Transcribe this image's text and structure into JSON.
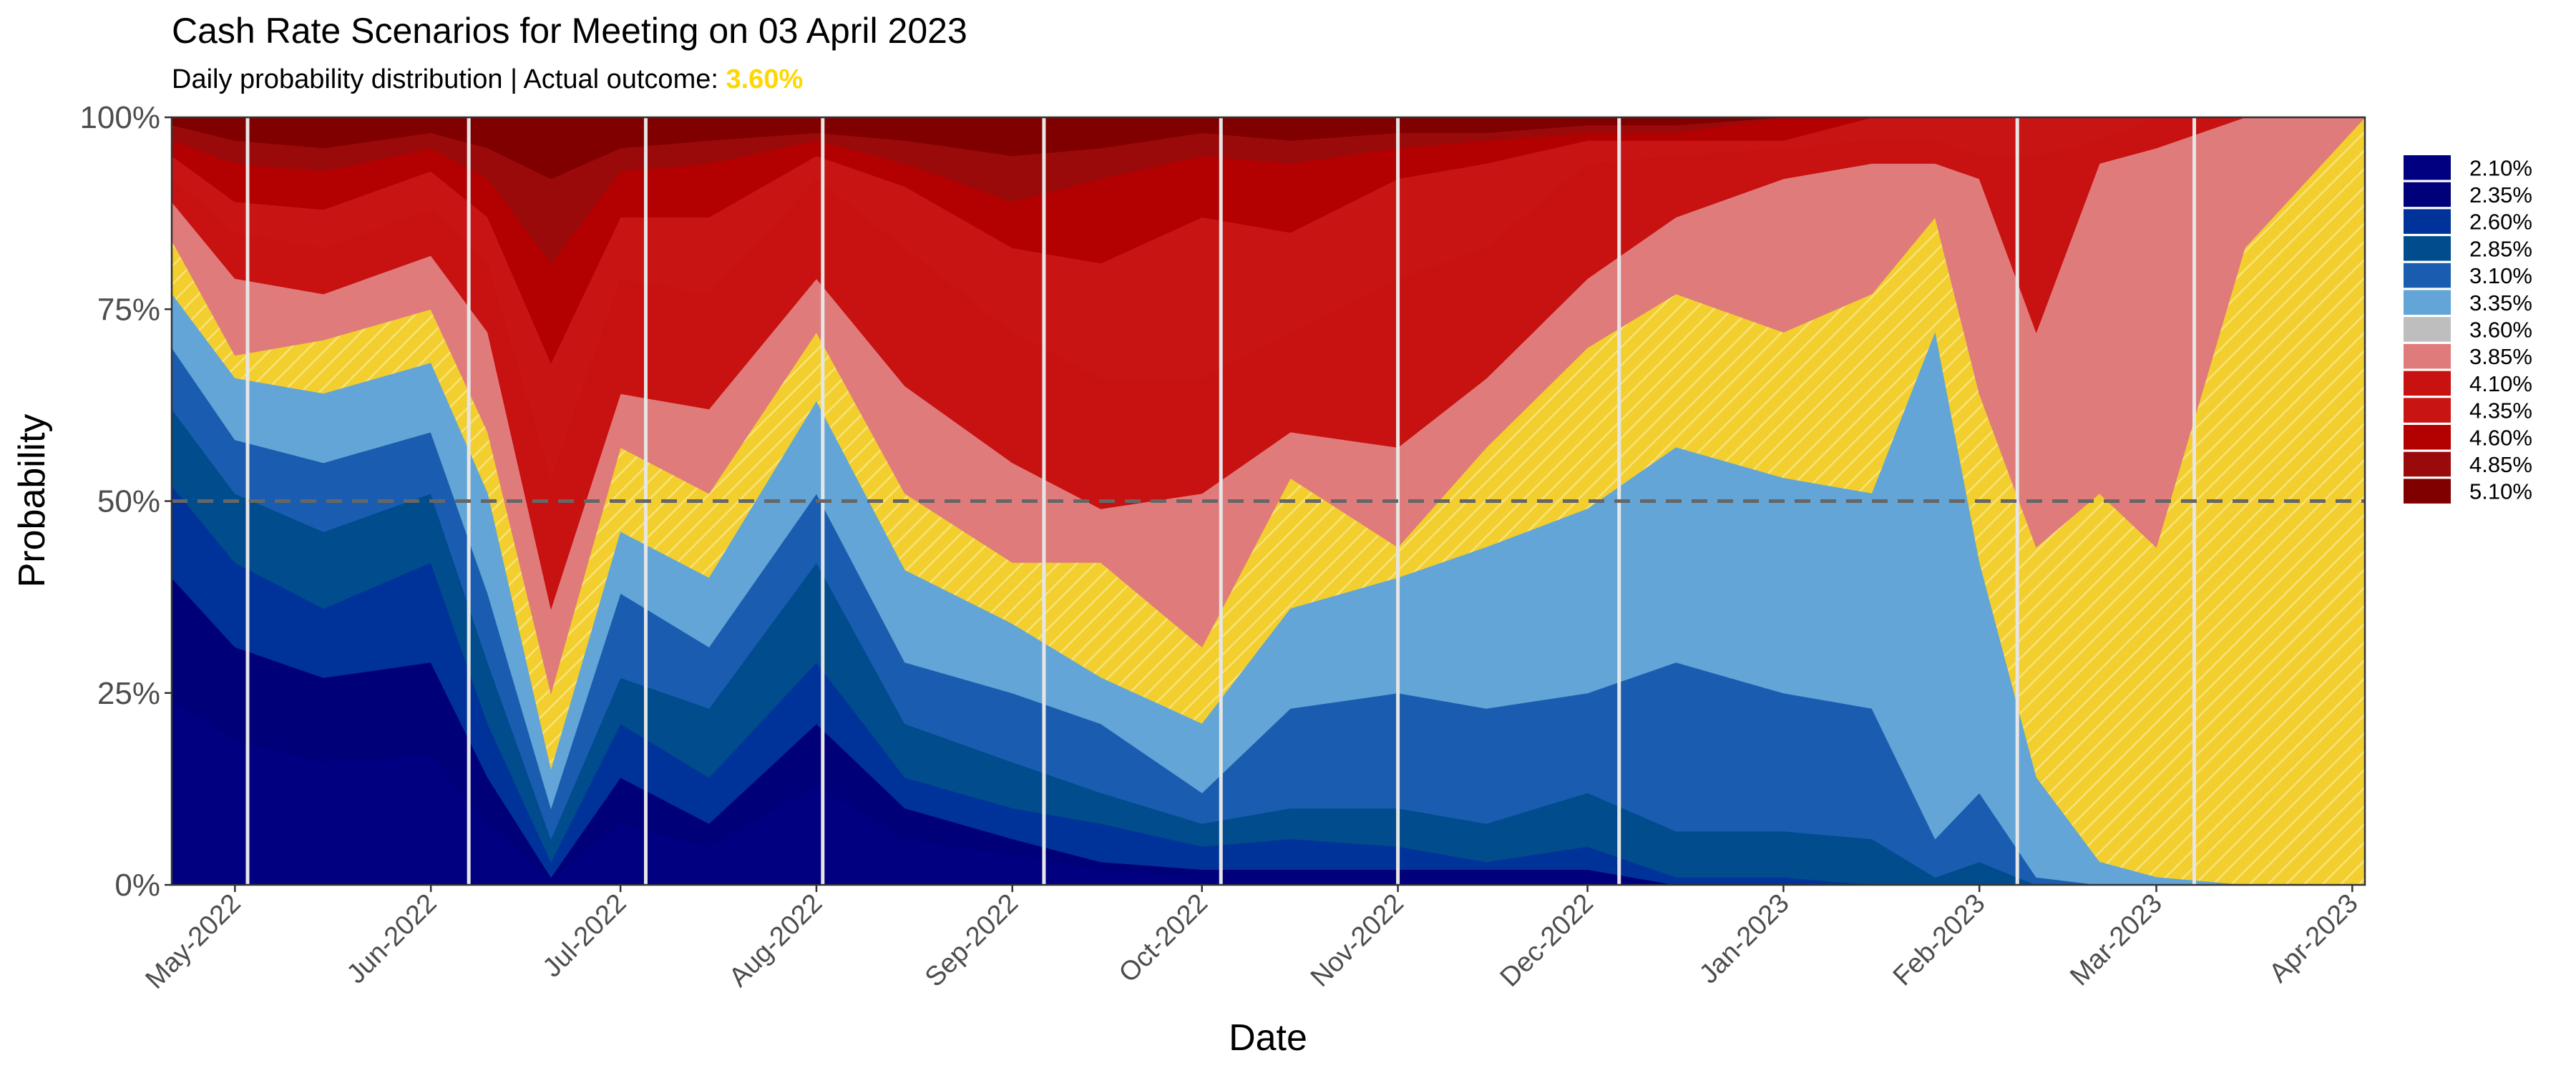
{
  "title": "Cash Rate Scenarios for Meeting on 03 April 2023",
  "subtitle_prefix": "Daily probability distribution | Actual outcome: ",
  "subtitle_highlight": "3.60%",
  "colors": {
    "highlight": "#FFD700",
    "hatch_fill": "#F2CF2E",
    "hatch_line": "#F8E27A",
    "fifty_line": "#666666",
    "meeting_line": "#E6E6E6"
  },
  "chart_data": {
    "type": "area",
    "stacked": true,
    "title": "Cash Rate Scenarios for Meeting on 03 April 2023",
    "xlabel": "Date",
    "ylabel": "Probability",
    "xlim": [
      "2022-04-21",
      "2023-04-03"
    ],
    "ylim": [
      0,
      100
    ],
    "y_ticks": [
      {
        "value": 0,
        "label": "0%"
      },
      {
        "value": 25,
        "label": "25%"
      },
      {
        "value": 50,
        "label": "50%"
      },
      {
        "value": 75,
        "label": "75%"
      },
      {
        "value": 100,
        "label": "100%"
      }
    ],
    "x_ticks": [
      {
        "date": "2022-05-01",
        "label": "May-2022"
      },
      {
        "date": "2022-06-01",
        "label": "Jun-2022"
      },
      {
        "date": "2022-07-01",
        "label": "Jul-2022"
      },
      {
        "date": "2022-08-01",
        "label": "Aug-2022"
      },
      {
        "date": "2022-09-01",
        "label": "Sep-2022"
      },
      {
        "date": "2022-10-01",
        "label": "Oct-2022"
      },
      {
        "date": "2022-11-01",
        "label": "Nov-2022"
      },
      {
        "date": "2022-12-01",
        "label": "Dec-2022"
      },
      {
        "date": "2023-01-01",
        "label": "Jan-2023"
      },
      {
        "date": "2023-02-01",
        "label": "Feb-2023"
      },
      {
        "date": "2023-03-01",
        "label": "Mar-2023"
      },
      {
        "date": "2023-04-01",
        "label": "Apr-2023"
      }
    ],
    "reference_line": {
      "y": 50,
      "style": "dashed"
    },
    "meeting_dates": [
      "2022-05-03",
      "2022-06-07",
      "2022-07-05",
      "2022-08-02",
      "2022-09-06",
      "2022-10-04",
      "2022-11-01",
      "2022-12-06",
      "2023-02-07",
      "2023-03-07"
    ],
    "actual_outcome": "3.60%",
    "legend_position": "right",
    "dates": [
      "2022-04-21",
      "2022-05-01",
      "2022-05-15",
      "2022-06-01",
      "2022-06-10",
      "2022-06-20",
      "2022-07-01",
      "2022-07-15",
      "2022-08-01",
      "2022-08-15",
      "2022-09-01",
      "2022-09-15",
      "2022-10-01",
      "2022-10-15",
      "2022-11-01",
      "2022-11-15",
      "2022-12-01",
      "2022-12-15",
      "2023-01-01",
      "2023-01-15",
      "2023-01-25",
      "2023-02-01",
      "2023-02-10",
      "2023-02-20",
      "2023-03-01",
      "2023-03-15",
      "2023-04-03"
    ],
    "series": [
      {
        "name": "2.10%",
        "color": "#000080",
        "values": [
          24,
          19,
          16,
          17,
          8,
          1,
          8,
          5,
          13,
          6,
          4,
          2,
          1,
          1,
          1,
          1,
          1,
          0,
          0,
          0,
          0,
          0,
          0,
          0,
          0,
          0,
          0
        ]
      },
      {
        "name": "2.35%",
        "color": "#000078",
        "values": [
          16,
          12,
          11,
          12,
          6,
          0,
          6,
          3,
          8,
          4,
          2,
          1,
          1,
          1,
          1,
          1,
          1,
          0,
          0,
          0,
          0,
          0,
          0,
          0,
          0,
          0,
          0
        ]
      },
      {
        "name": "2.60%",
        "color": "#003399",
        "values": [
          12,
          11,
          9,
          13,
          7,
          2,
          7,
          6,
          8,
          4,
          4,
          5,
          3,
          4,
          3,
          1,
          3,
          1,
          1,
          0,
          0,
          0,
          0,
          0,
          0,
          0,
          0
        ]
      },
      {
        "name": "2.85%",
        "color": "#004C8C",
        "values": [
          10,
          9,
          10,
          9,
          8,
          3,
          6,
          9,
          13,
          7,
          6,
          4,
          3,
          4,
          5,
          5,
          7,
          6,
          6,
          6,
          1,
          3,
          0,
          0,
          0,
          0,
          0
        ]
      },
      {
        "name": "3.10%",
        "color": "#1A5DB0",
        "values": [
          8,
          7,
          9,
          8,
          9,
          4,
          11,
          8,
          9,
          8,
          9,
          9,
          4,
          13,
          15,
          15,
          13,
          22,
          18,
          17,
          5,
          9,
          1,
          0,
          0,
          0,
          0
        ]
      },
      {
        "name": "3.35%",
        "color": "#62A5D6",
        "values": [
          7,
          8,
          9,
          9,
          13,
          5,
          8,
          9,
          12,
          12,
          9,
          6,
          9,
          13,
          15,
          21,
          24,
          28,
          28,
          28,
          66,
          30,
          13,
          3,
          1,
          0,
          0
        ]
      },
      {
        "name": "3.60%",
        "color": "#BEBEBE",
        "hatched": true,
        "values": [
          7,
          3,
          7,
          7,
          8,
          10,
          11,
          11,
          9,
          10,
          8,
          15,
          10,
          17,
          4,
          13,
          21,
          20,
          19,
          26,
          15,
          22,
          30,
          48,
          43,
          83,
          100
        ]
      },
      {
        "name": "3.85%",
        "color": "#E07B7B",
        "values": [
          5,
          10,
          6,
          7,
          13,
          11,
          7,
          11,
          7,
          14,
          13,
          7,
          20,
          6,
          13,
          9,
          9,
          10,
          20,
          17,
          7,
          28,
          28,
          43,
          52,
          17,
          0
        ]
      },
      {
        "name": "4.10%",
        "color": "#C81111",
        "values": [
          3,
          6,
          6,
          6,
          9,
          17,
          15,
          15,
          13,
          18,
          17,
          17,
          15,
          13,
          22,
          17,
          15,
          8,
          4,
          3,
          3,
          3,
          23,
          3,
          4,
          0,
          0
        ]
      },
      {
        "name": "4.35%",
        "color": "#C91414",
        "values": [
          3,
          4,
          5,
          5,
          6,
          15,
          8,
          10,
          3,
          8,
          11,
          15,
          21,
          13,
          13,
          11,
          3,
          2,
          1,
          3,
          3,
          5,
          5,
          3,
          0,
          0,
          0
        ]
      },
      {
        "name": "4.60%",
        "color": "#B30000",
        "values": [
          2,
          5,
          5,
          3,
          5,
          13,
          6,
          7,
          2,
          3,
          6,
          11,
          8,
          9,
          4,
          3,
          1,
          1,
          3,
          0,
          0,
          0,
          0,
          0,
          0,
          0,
          0
        ]
      },
      {
        "name": "4.85%",
        "color": "#9B0A0A",
        "values": [
          2,
          3,
          3,
          2,
          4,
          11,
          3,
          3,
          1,
          3,
          6,
          4,
          3,
          3,
          2,
          1,
          1,
          1,
          0,
          0,
          0,
          0,
          0,
          0,
          0,
          0,
          0
        ]
      },
      {
        "name": "5.10%",
        "color": "#800000",
        "values": [
          1,
          3,
          4,
          2,
          4,
          8,
          4,
          3,
          2,
          3,
          5,
          4,
          2,
          3,
          2,
          2,
          1,
          1,
          0,
          0,
          0,
          0,
          0,
          0,
          0,
          0,
          0
        ]
      }
    ]
  }
}
